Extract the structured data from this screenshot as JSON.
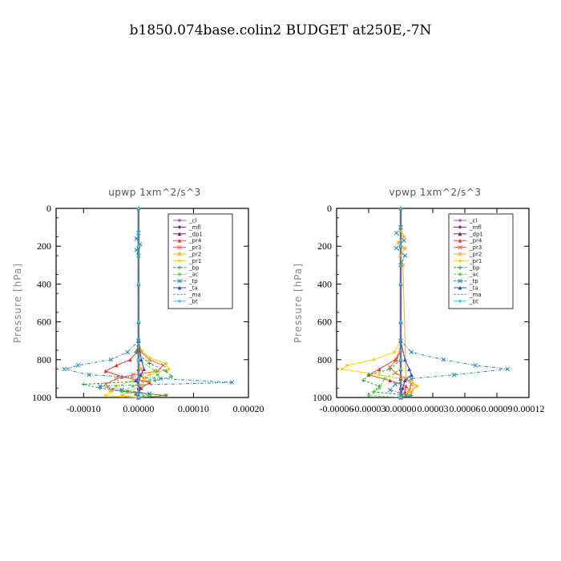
{
  "title": "b1850.074base.colin2  BUDGET at250E,-7N",
  "colors": {
    "_cl": "#9b59b6",
    "_mfl": "#7b1fa2",
    "_dp1": "#8b1a3b",
    "_pr4": "#e53935",
    "_pr3": "#ff5a36",
    "_pr2": "#ffa726",
    "_pr1": "#f5d000",
    "_bp": "#21a33b",
    "_ac": "#55dd33",
    "_tp": "#1e88b8",
    "_ta": "#3546c8",
    "_ma": "#4ab0c8",
    "_bt": "#22d3ee"
  },
  "chart_data": [
    {
      "type": "line",
      "title": "upwp   1xm^2/s^3",
      "ylabel": "Pressure [hPa]",
      "xlabel": "",
      "xlim": [
        -0.00015,
        0.0002
      ],
      "ylim": [
        1000,
        0
      ],
      "xticks": [
        -0.0001,
        0.0,
        0.0001,
        0.0002
      ],
      "xticklabels": [
        "-0.00010",
        "0.00000",
        "0.00010",
        "0.00020"
      ],
      "yticks": [
        0,
        200,
        400,
        600,
        800,
        1000
      ],
      "legend": [
        "_cl",
        "_mfl",
        "_dp1",
        "_pr4",
        "_pr3",
        "_pr2",
        "_pr1",
        "_bp",
        "_ac",
        "_tp",
        "_ta",
        "_ma",
        "_bt"
      ],
      "legend_position": "top-right",
      "series": [
        {
          "name": "_cl",
          "y": [
            0,
            200,
            400,
            600,
            800,
            900,
            1000
          ],
          "x": [
            0,
            0,
            0,
            0,
            0,
            0,
            0
          ]
        },
        {
          "name": "_mfl",
          "y": [
            0,
            200,
            400,
            600,
            800,
            900,
            1000
          ],
          "x": [
            0,
            0,
            0,
            0,
            0,
            0,
            0
          ]
        },
        {
          "name": "_dp1",
          "y": [
            0,
            200,
            400,
            600,
            700,
            750,
            800,
            850,
            900,
            950,
            1000
          ],
          "x": [
            0,
            0,
            0,
            0,
            0,
            0,
            0,
            0,
            0,
            0,
            0
          ]
        },
        {
          "name": "_pr4",
          "y": [
            700,
            760,
            800,
            830,
            860,
            890,
            920,
            950,
            980,
            1000
          ],
          "x": [
            0,
            -3e-06,
            -1.5e-05,
            -4e-05,
            -6e-05,
            -3e-05,
            2e-05,
            5e-06,
            -5e-06,
            0
          ]
        },
        {
          "name": "_pr3",
          "y": [
            700,
            760,
            800,
            830,
            860,
            880,
            900,
            930,
            960,
            990,
            1000
          ],
          "x": [
            0,
            5e-06,
            2e-05,
            4.5e-05,
            3.5e-05,
            -1e-05,
            -4e-05,
            -6e-05,
            -5e-05,
            5e-05,
            0
          ]
        },
        {
          "name": "_pr2",
          "y": [
            800,
            850,
            900,
            940,
            970,
            990,
            1000
          ],
          "x": [
            0,
            5e-06,
            1e-05,
            5e-06,
            -2e-05,
            -3e-05,
            0
          ]
        },
        {
          "name": "_pr1",
          "y": [
            700,
            750,
            790,
            820,
            850,
            880,
            910,
            940,
            970,
            990,
            1000
          ],
          "x": [
            0,
            5e-06,
            2e-05,
            5e-05,
            5.5e-05,
            2e-05,
            -1e-05,
            -4e-05,
            -5e-05,
            -6e-05,
            0
          ]
        },
        {
          "name": "_bp",
          "y": [
            700,
            760,
            820,
            860,
            890,
            910,
            930,
            950,
            970,
            990,
            1000
          ],
          "x": [
            0,
            -5e-06,
            2e-05,
            5e-05,
            6e-05,
            3e-05,
            -0.0001,
            -7e-05,
            -2e-05,
            5e-05,
            0
          ]
        },
        {
          "name": "_ac",
          "y": [
            800,
            860,
            880,
            910,
            940,
            970,
            990,
            1000
          ],
          "x": [
            0,
            3e-05,
            3.5e-05,
            2e-05,
            -1e-05,
            -3e-05,
            2e-05,
            0
          ]
        },
        {
          "name": "_tp",
          "y": [
            130,
            160,
            190,
            220,
            250,
            700,
            760,
            800,
            830,
            850,
            880,
            900,
            920,
            940,
            960,
            980,
            1000
          ],
          "x": [
            0,
            -4e-06,
            3e-06,
            -4e-06,
            0,
            0,
            -2e-05,
            -5e-05,
            -0.00011,
            -0.000135,
            -9e-05,
            4e-05,
            0.00017,
            -7e-05,
            -3e-05,
            2e-05,
            0
          ]
        },
        {
          "name": "_ta",
          "y": [
            700,
            800,
            850,
            880,
            910,
            950,
            1000
          ],
          "x": [
            0,
            5e-06,
            1e-05,
            4e-06,
            -5e-06,
            3e-06,
            0
          ]
        },
        {
          "name": "_ma",
          "y": [
            0,
            200,
            400,
            600,
            800,
            1000
          ],
          "x": [
            0,
            0,
            0,
            0,
            0,
            0
          ]
        },
        {
          "name": "_bt",
          "y": [
            0,
            200,
            400,
            600,
            800,
            1000
          ],
          "x": [
            0,
            0,
            0,
            0,
            0,
            0
          ]
        }
      ]
    },
    {
      "type": "line",
      "title": "vpwp   1xm^2/s^3",
      "ylabel": "Pressure [hPa]",
      "xlabel": "",
      "xlim": [
        -6e-05,
        0.00012
      ],
      "ylim": [
        1000,
        0
      ],
      "xticks": [
        -6e-05,
        -3e-05,
        0.0,
        3e-05,
        6e-05,
        9e-05,
        0.00012
      ],
      "xticklabels": [
        "-0.00006",
        "-0.00003",
        "0.00000",
        "0.00003",
        "0.00006",
        "0.00009",
        "0.00012"
      ],
      "yticks": [
        0,
        200,
        400,
        600,
        800,
        1000
      ],
      "legend": [
        "_cl",
        "_mfl",
        "_dp1",
        "_pr4",
        "_pr3",
        "_pr2",
        "_pr1",
        "_bp",
        "_ac",
        "_tp",
        "_ta",
        "_ma",
        "_bt"
      ],
      "legend_position": "top-right",
      "series": [
        {
          "name": "_cl",
          "y": [
            0,
            200,
            400,
            600,
            800,
            900,
            1000
          ],
          "x": [
            0,
            0,
            0,
            0,
            0,
            0,
            0
          ]
        },
        {
          "name": "_mfl",
          "y": [
            0,
            200,
            400,
            600,
            800,
            900,
            1000
          ],
          "x": [
            0,
            0,
            0,
            0,
            0,
            0,
            0
          ]
        },
        {
          "name": "_dp1",
          "y": [
            0,
            200,
            400,
            600,
            700,
            750,
            800,
            850,
            900,
            950,
            1000
          ],
          "x": [
            0,
            0,
            0,
            0,
            0,
            0,
            0,
            0,
            0,
            0,
            0
          ]
        },
        {
          "name": "_pr4",
          "y": [
            750,
            800,
            850,
            880,
            910,
            940,
            970,
            1000
          ],
          "x": [
            0,
            -5e-06,
            -2e-05,
            -3e-05,
            -1e-05,
            5e-06,
            4e-06,
            0
          ]
        },
        {
          "name": "_pr3",
          "y": [
            750,
            800,
            840,
            870,
            900,
            930,
            960,
            990,
            1000
          ],
          "x": [
            0,
            -4e-06,
            -1e-05,
            -5e-06,
            5e-06,
            1e-05,
            8e-06,
            5e-06,
            0
          ]
        },
        {
          "name": "_pr2",
          "y": [
            120,
            150,
            180,
            210,
            250,
            300,
            900,
            940,
            970,
            1000
          ],
          "x": [
            0,
            3e-06,
            -2e-06,
            4e-06,
            0,
            2e-06,
            5e-06,
            1.5e-05,
            1e-05,
            0
          ]
        },
        {
          "name": "_pr1",
          "y": [
            700,
            760,
            800,
            830,
            850,
            880,
            910,
            940,
            970,
            1000
          ],
          "x": [
            0,
            -6e-06,
            -2.5e-05,
            -5e-05,
            -5.5e-05,
            -2e-05,
            1e-05,
            1.5e-05,
            8e-06,
            0
          ]
        },
        {
          "name": "_bp",
          "y": [
            800,
            850,
            880,
            910,
            940,
            970,
            990,
            1000
          ],
          "x": [
            0,
            -1e-05,
            -3e-05,
            -3.5e-05,
            -2e-05,
            -2.5e-05,
            1e-05,
            0
          ]
        },
        {
          "name": "_ac",
          "y": [
            850,
            900,
            950,
            990,
            1000
          ],
          "x": [
            0,
            -1.5e-05,
            -2e-05,
            -3e-05,
            0
          ]
        },
        {
          "name": "_tp",
          "y": [
            100,
            130,
            170,
            210,
            250,
            300,
            700,
            760,
            800,
            830,
            850,
            880,
            900,
            930,
            960,
            990,
            1000
          ],
          "x": [
            0,
            -4e-06,
            3e-06,
            -4e-06,
            4e-06,
            0,
            0,
            1e-05,
            4e-05,
            7e-05,
            0.0001,
            5e-05,
            1e-05,
            -5e-06,
            -1e-05,
            8e-06,
            0
          ]
        },
        {
          "name": "_ta",
          "y": [
            700,
            800,
            850,
            880,
            910,
            950,
            1000
          ],
          "x": [
            0,
            4e-06,
            8e-06,
            1e-05,
            4e-06,
            2e-06,
            0
          ]
        },
        {
          "name": "_ma",
          "y": [
            0,
            200,
            400,
            600,
            800,
            1000
          ],
          "x": [
            0,
            0,
            0,
            0,
            0,
            0
          ]
        },
        {
          "name": "_bt",
          "y": [
            0,
            200,
            400,
            600,
            800,
            1000
          ],
          "x": [
            0,
            0,
            0,
            0,
            0,
            0
          ]
        }
      ]
    }
  ]
}
